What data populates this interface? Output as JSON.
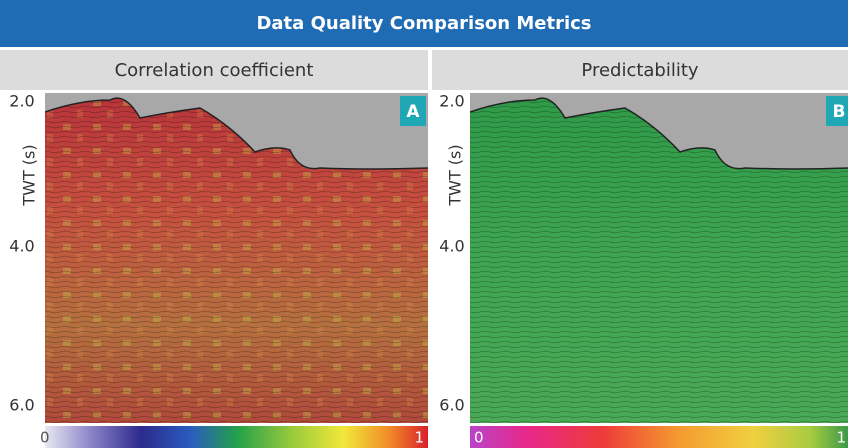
{
  "header": {
    "title": "Data Quality Comparison Metrics"
  },
  "panels": [
    {
      "subtitle": "Correlation coefficient",
      "badge": "A",
      "axis_label": "TWT (s)",
      "ticks": [
        "2.0",
        "4.0",
        "6.0"
      ],
      "scale_min": "0",
      "scale_max": "1"
    },
    {
      "subtitle": "Predictability",
      "badge": "B",
      "axis_label": "TWT (s)",
      "ticks": [
        "2.0",
        "4.0",
        "6.0"
      ],
      "scale_min": "0",
      "scale_max": "1"
    }
  ]
}
